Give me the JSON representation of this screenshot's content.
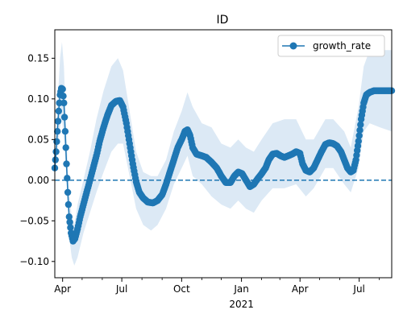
{
  "chart_data": {
    "type": "line",
    "title": "ID",
    "xlabel": "",
    "ylabel": "",
    "x_start": "2020-03-20",
    "x_end": "2021-08-20",
    "ylim": [
      -0.12,
      0.185
    ],
    "y_ticks": [
      -0.1,
      -0.05,
      0.0,
      0.05,
      0.1,
      0.15
    ],
    "y_tick_labels": [
      "−0.10",
      "−0.05",
      "0.00",
      "0.05",
      "0.10",
      "0.15"
    ],
    "x_major_ticks": [
      {
        "date": "2020-04-01",
        "label": "Apr"
      },
      {
        "date": "2020-07-01",
        "label": "Jul"
      },
      {
        "date": "2020-10-01",
        "label": "Oct"
      },
      {
        "date": "2021-01-01",
        "label": "Jan"
      },
      {
        "date": "2021-04-01",
        "label": "Apr"
      },
      {
        "date": "2021-07-01",
        "label": "Jul"
      }
    ],
    "x_minor_ticks": [
      "2020-05-01",
      "2020-06-01",
      "2020-08-01",
      "2020-09-01",
      "2020-11-01",
      "2020-12-01",
      "2021-02-01",
      "2021-03-01",
      "2021-05-01",
      "2021-06-01",
      "2021-08-01"
    ],
    "year_label": "2021",
    "legend": {
      "placement": "top-right",
      "entries": [
        "growth_rate"
      ]
    },
    "reference_line": {
      "y": 0.0,
      "style": "dashed"
    },
    "colors": {
      "line": "#1f77b4",
      "band": "#dce9f5"
    },
    "series": [
      {
        "name": "growth_rate",
        "points": [
          [
            "2020-03-20",
            0.015
          ],
          [
            "2020-03-22",
            0.035
          ],
          [
            "2020-03-24",
            0.06
          ],
          [
            "2020-03-26",
            0.085
          ],
          [
            "2020-03-28",
            0.105
          ],
          [
            "2020-03-30",
            0.113
          ],
          [
            "2020-04-01",
            0.112
          ],
          [
            "2020-04-03",
            0.095
          ],
          [
            "2020-04-05",
            0.06
          ],
          [
            "2020-04-07",
            0.02
          ],
          [
            "2020-04-09",
            -0.015
          ],
          [
            "2020-04-11",
            -0.045
          ],
          [
            "2020-04-14",
            -0.065
          ],
          [
            "2020-04-17",
            -0.075
          ],
          [
            "2020-04-20",
            -0.072
          ],
          [
            "2020-04-24",
            -0.06
          ],
          [
            "2020-04-28",
            -0.045
          ],
          [
            "2020-05-03",
            -0.03
          ],
          [
            "2020-05-08",
            -0.015
          ],
          [
            "2020-05-13",
            0.0
          ],
          [
            "2020-05-18",
            0.015
          ],
          [
            "2020-05-23",
            0.03
          ],
          [
            "2020-05-28",
            0.048
          ],
          [
            "2020-06-03",
            0.065
          ],
          [
            "2020-06-09",
            0.08
          ],
          [
            "2020-06-15",
            0.092
          ],
          [
            "2020-06-22",
            0.097
          ],
          [
            "2020-06-28",
            0.098
          ],
          [
            "2020-07-03",
            0.09
          ],
          [
            "2020-07-08",
            0.07
          ],
          [
            "2020-07-13",
            0.045
          ],
          [
            "2020-07-18",
            0.02
          ],
          [
            "2020-07-23",
            -0.002
          ],
          [
            "2020-07-28",
            -0.015
          ],
          [
            "2020-08-03",
            -0.022
          ],
          [
            "2020-08-10",
            -0.027
          ],
          [
            "2020-08-18",
            -0.028
          ],
          [
            "2020-08-25",
            -0.025
          ],
          [
            "2020-09-01",
            -0.018
          ],
          [
            "2020-09-07",
            -0.005
          ],
          [
            "2020-09-13",
            0.01
          ],
          [
            "2020-09-19",
            0.025
          ],
          [
            "2020-09-25",
            0.04
          ],
          [
            "2020-10-01",
            0.05
          ],
          [
            "2020-10-06",
            0.06
          ],
          [
            "2020-10-10",
            0.062
          ],
          [
            "2020-10-14",
            0.055
          ],
          [
            "2020-10-18",
            0.04
          ],
          [
            "2020-10-24",
            0.032
          ],
          [
            "2020-11-01",
            0.03
          ],
          [
            "2020-11-08",
            0.028
          ],
          [
            "2020-11-16",
            0.022
          ],
          [
            "2020-11-24",
            0.015
          ],
          [
            "2020-12-01",
            0.005
          ],
          [
            "2020-12-08",
            -0.003
          ],
          [
            "2020-12-15",
            -0.003
          ],
          [
            "2020-12-21",
            0.005
          ],
          [
            "2020-12-27",
            0.01
          ],
          [
            "2021-01-02",
            0.008
          ],
          [
            "2021-01-08",
            0.0
          ],
          [
            "2021-01-14",
            -0.008
          ],
          [
            "2021-01-20",
            -0.005
          ],
          [
            "2021-01-26",
            0.002
          ],
          [
            "2021-02-01",
            0.008
          ],
          [
            "2021-02-07",
            0.015
          ],
          [
            "2021-02-12",
            0.025
          ],
          [
            "2021-02-18",
            0.032
          ],
          [
            "2021-02-24",
            0.033
          ],
          [
            "2021-03-02",
            0.03
          ],
          [
            "2021-03-08",
            0.028
          ],
          [
            "2021-03-14",
            0.03
          ],
          [
            "2021-03-20",
            0.032
          ],
          [
            "2021-03-26",
            0.035
          ],
          [
            "2021-04-01",
            0.033
          ],
          [
            "2021-04-05",
            0.02
          ],
          [
            "2021-04-10",
            0.012
          ],
          [
            "2021-04-16",
            0.01
          ],
          [
            "2021-04-22",
            0.015
          ],
          [
            "2021-04-28",
            0.025
          ],
          [
            "2021-05-04",
            0.035
          ],
          [
            "2021-05-10",
            0.044
          ],
          [
            "2021-05-16",
            0.046
          ],
          [
            "2021-05-22",
            0.045
          ],
          [
            "2021-05-28",
            0.042
          ],
          [
            "2021-06-03",
            0.035
          ],
          [
            "2021-06-08",
            0.025
          ],
          [
            "2021-06-13",
            0.015
          ],
          [
            "2021-06-18",
            0.01
          ],
          [
            "2021-06-22",
            0.012
          ],
          [
            "2021-06-26",
            0.025
          ],
          [
            "2021-06-30",
            0.048
          ],
          [
            "2021-07-04",
            0.075
          ],
          [
            "2021-07-08",
            0.095
          ],
          [
            "2021-07-12",
            0.105
          ],
          [
            "2021-07-17",
            0.108
          ],
          [
            "2021-07-24",
            0.11
          ],
          [
            "2021-08-02",
            0.11
          ],
          [
            "2021-08-12",
            0.11
          ],
          [
            "2021-08-20",
            0.11
          ]
        ],
        "band": [
          [
            "2020-03-20",
            0.005,
            0.025
          ],
          [
            "2020-03-24",
            0.04,
            0.09
          ],
          [
            "2020-03-28",
            0.065,
            0.15
          ],
          [
            "2020-03-31",
            0.075,
            0.17
          ],
          [
            "2020-04-03",
            0.05,
            0.14
          ],
          [
            "2020-04-07",
            0.0,
            0.05
          ],
          [
            "2020-04-11",
            -0.07,
            -0.015
          ],
          [
            "2020-04-15",
            -0.095,
            -0.045
          ],
          [
            "2020-04-19",
            -0.105,
            -0.055
          ],
          [
            "2020-04-24",
            -0.095,
            -0.03
          ],
          [
            "2020-05-03",
            -0.065,
            0.0
          ],
          [
            "2020-05-13",
            -0.04,
            0.035
          ],
          [
            "2020-05-23",
            -0.015,
            0.075
          ],
          [
            "2020-06-03",
            0.01,
            0.11
          ],
          [
            "2020-06-15",
            0.035,
            0.14
          ],
          [
            "2020-06-25",
            0.045,
            0.15
          ],
          [
            "2020-07-03",
            0.045,
            0.135
          ],
          [
            "2020-07-13",
            0.005,
            0.085
          ],
          [
            "2020-07-23",
            -0.035,
            0.035
          ],
          [
            "2020-08-03",
            -0.055,
            0.01
          ],
          [
            "2020-08-15",
            -0.062,
            0.005
          ],
          [
            "2020-08-25",
            -0.055,
            0.005
          ],
          [
            "2020-09-07",
            -0.035,
            0.025
          ],
          [
            "2020-09-19",
            -0.005,
            0.06
          ],
          [
            "2020-10-01",
            0.015,
            0.085
          ],
          [
            "2020-10-10",
            0.03,
            0.108
          ],
          [
            "2020-10-18",
            0.005,
            0.09
          ],
          [
            "2020-11-01",
            -0.005,
            0.07
          ],
          [
            "2020-11-16",
            -0.02,
            0.065
          ],
          [
            "2020-12-01",
            -0.03,
            0.045
          ],
          [
            "2020-12-15",
            -0.035,
            0.04
          ],
          [
            "2020-12-27",
            -0.025,
            0.05
          ],
          [
            "2021-01-08",
            -0.035,
            0.04
          ],
          [
            "2021-01-20",
            -0.04,
            0.035
          ],
          [
            "2021-02-01",
            -0.025,
            0.05
          ],
          [
            "2021-02-18",
            -0.01,
            0.07
          ],
          [
            "2021-03-08",
            -0.01,
            0.075
          ],
          [
            "2021-03-26",
            -0.005,
            0.075
          ],
          [
            "2021-04-10",
            -0.02,
            0.05
          ],
          [
            "2021-04-22",
            -0.01,
            0.05
          ],
          [
            "2021-05-10",
            0.015,
            0.075
          ],
          [
            "2021-05-22",
            0.015,
            0.075
          ],
          [
            "2021-06-08",
            -0.005,
            0.06
          ],
          [
            "2021-06-18",
            -0.015,
            0.04
          ],
          [
            "2021-06-30",
            0.015,
            0.09
          ],
          [
            "2021-07-08",
            0.06,
            0.14
          ],
          [
            "2021-07-17",
            0.07,
            0.16
          ],
          [
            "2021-08-02",
            0.065,
            0.16
          ],
          [
            "2021-08-20",
            0.06,
            0.16
          ]
        ]
      }
    ]
  }
}
